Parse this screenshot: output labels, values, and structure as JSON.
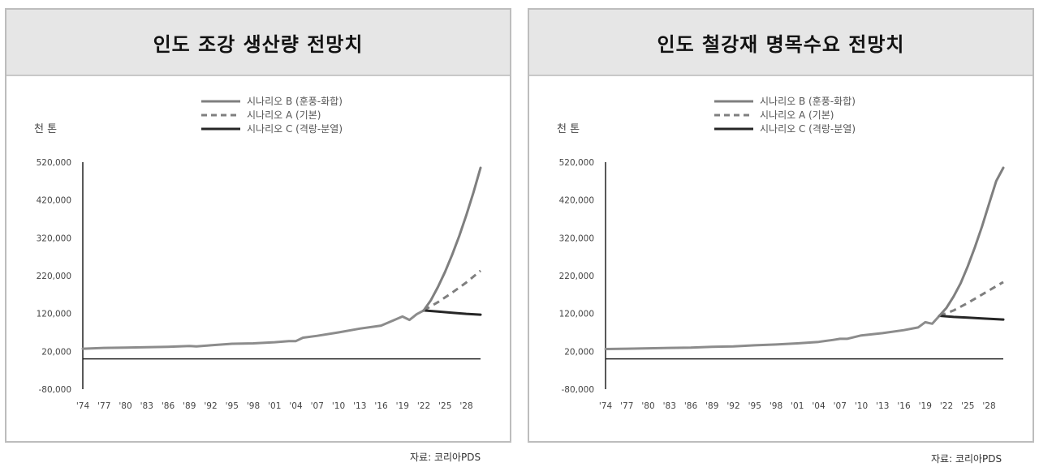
{
  "source_text": "자료: 코리아PDS",
  "chart_data": [
    {
      "type": "line",
      "title": "인도 조강 생산량 전망치",
      "unit": "천 톤",
      "ylim": [
        -80000,
        520000
      ],
      "yticks": [
        520000,
        420000,
        320000,
        220000,
        120000,
        20000,
        -80000
      ],
      "ytick_labels": [
        "520,000",
        "420,000",
        "320,000",
        "220,000",
        "120,000",
        "20,000",
        "-80,000"
      ],
      "xlim": [
        1974,
        2030
      ],
      "xticks": [
        1974,
        1977,
        1980,
        1983,
        1986,
        1989,
        1992,
        1995,
        1998,
        2001,
        2004,
        2007,
        2010,
        2013,
        2016,
        2019,
        2022,
        2025,
        2028
      ],
      "xtick_labels": [
        "'74",
        "'77",
        "'80",
        "'83",
        "'86",
        "'89",
        "'92",
        "'95",
        "'98",
        "'01",
        "'04",
        "'07",
        "'10",
        "'13",
        "'16",
        "'19",
        "'22",
        "'25",
        "'28"
      ],
      "series": [
        {
          "name": "시나리오 B (훈풍-화합)",
          "style": "solid",
          "color": "#7f7f7f",
          "x": [
            2022,
            2023,
            2024,
            2025,
            2026,
            2027,
            2028,
            2029,
            2030
          ],
          "y": [
            128000,
            155000,
            190000,
            230000,
            275000,
            325000,
            380000,
            440000,
            505000
          ]
        },
        {
          "name": "시나리오 A (기본)",
          "style": "dashed",
          "color": "#7f7f7f",
          "x": [
            2022,
            2024,
            2026,
            2028,
            2030
          ],
          "y": [
            128000,
            150000,
            175000,
            202000,
            233000
          ]
        },
        {
          "name": "시나리오 C (격랑-분열)",
          "style": "solid",
          "color": "#262626",
          "x": [
            2022,
            2024,
            2026,
            2028,
            2030
          ],
          "y": [
            128000,
            125000,
            122000,
            119000,
            117000
          ]
        },
        {
          "name": "",
          "style": "solid",
          "color": "#8c8c8c",
          "x": [
            1974,
            1977,
            1980,
            1983,
            1986,
            1989,
            1990,
            1992,
            1995,
            1998,
            2001,
            2003,
            2004,
            2005,
            2007,
            2010,
            2013,
            2016,
            2019,
            2020,
            2021,
            2022
          ],
          "y": [
            27000,
            29000,
            30000,
            31000,
            32000,
            34000,
            33000,
            36000,
            40000,
            41000,
            44000,
            47000,
            47000,
            56000,
            61000,
            70000,
            80000,
            88000,
            112000,
            103000,
            118000,
            128000
          ]
        }
      ]
    },
    {
      "type": "line",
      "title": "인도 철강재 명목수요 전망치",
      "unit": "천 톤",
      "ylim": [
        -80000,
        520000
      ],
      "yticks": [
        520000,
        420000,
        320000,
        220000,
        120000,
        20000,
        -80000
      ],
      "ytick_labels": [
        "520,000",
        "420,000",
        "320,000",
        "220,000",
        "120,000",
        "20,000",
        "-80,000"
      ],
      "xlim": [
        1974,
        2030
      ],
      "xticks": [
        1974,
        1977,
        1980,
        1983,
        1986,
        1989,
        1992,
        1995,
        1998,
        2001,
        2004,
        2007,
        2010,
        2013,
        2016,
        2019,
        2022,
        2025,
        2028
      ],
      "xtick_labels": [
        "'74",
        "'77",
        "'80",
        "'83",
        "'86",
        "'89",
        "'92",
        "'95",
        "'98",
        "'01",
        "'04",
        "'07",
        "'10",
        "'13",
        "'16",
        "'19",
        "'22",
        "'25",
        "'28"
      ],
      "series": [
        {
          "name": "시나리오 B (훈풍-화합)",
          "style": "solid",
          "color": "#7f7f7f",
          "x": [
            2021,
            2022,
            2023,
            2024,
            2025,
            2026,
            2027,
            2028,
            2029,
            2030
          ],
          "y": [
            114000,
            135000,
            165000,
            200000,
            245000,
            295000,
            350000,
            410000,
            470000,
            505000
          ]
        },
        {
          "name": "시나리오 A (기본)",
          "style": "dashed",
          "color": "#7f7f7f",
          "x": [
            2021,
            2023,
            2025,
            2027,
            2030
          ],
          "y": [
            114000,
            128000,
            148000,
            170000,
            203000
          ]
        },
        {
          "name": "시나리오 C (격랑-분열)",
          "style": "solid",
          "color": "#262626",
          "x": [
            2021,
            2023,
            2025,
            2027,
            2030
          ],
          "y": [
            114000,
            111000,
            109000,
            107000,
            104000
          ]
        },
        {
          "name": "",
          "style": "solid",
          "color": "#8c8c8c",
          "x": [
            1974,
            1977,
            1980,
            1983,
            1986,
            1989,
            1992,
            1995,
            1998,
            2001,
            2004,
            2006,
            2007,
            2008,
            2010,
            2013,
            2016,
            2018,
            2019,
            2020,
            2021
          ],
          "y": [
            26000,
            27000,
            28000,
            29000,
            30000,
            32000,
            33000,
            36000,
            38000,
            41000,
            45000,
            50000,
            53000,
            53000,
            62000,
            68000,
            76000,
            83000,
            97000,
            93000,
            114000
          ]
        }
      ]
    }
  ]
}
